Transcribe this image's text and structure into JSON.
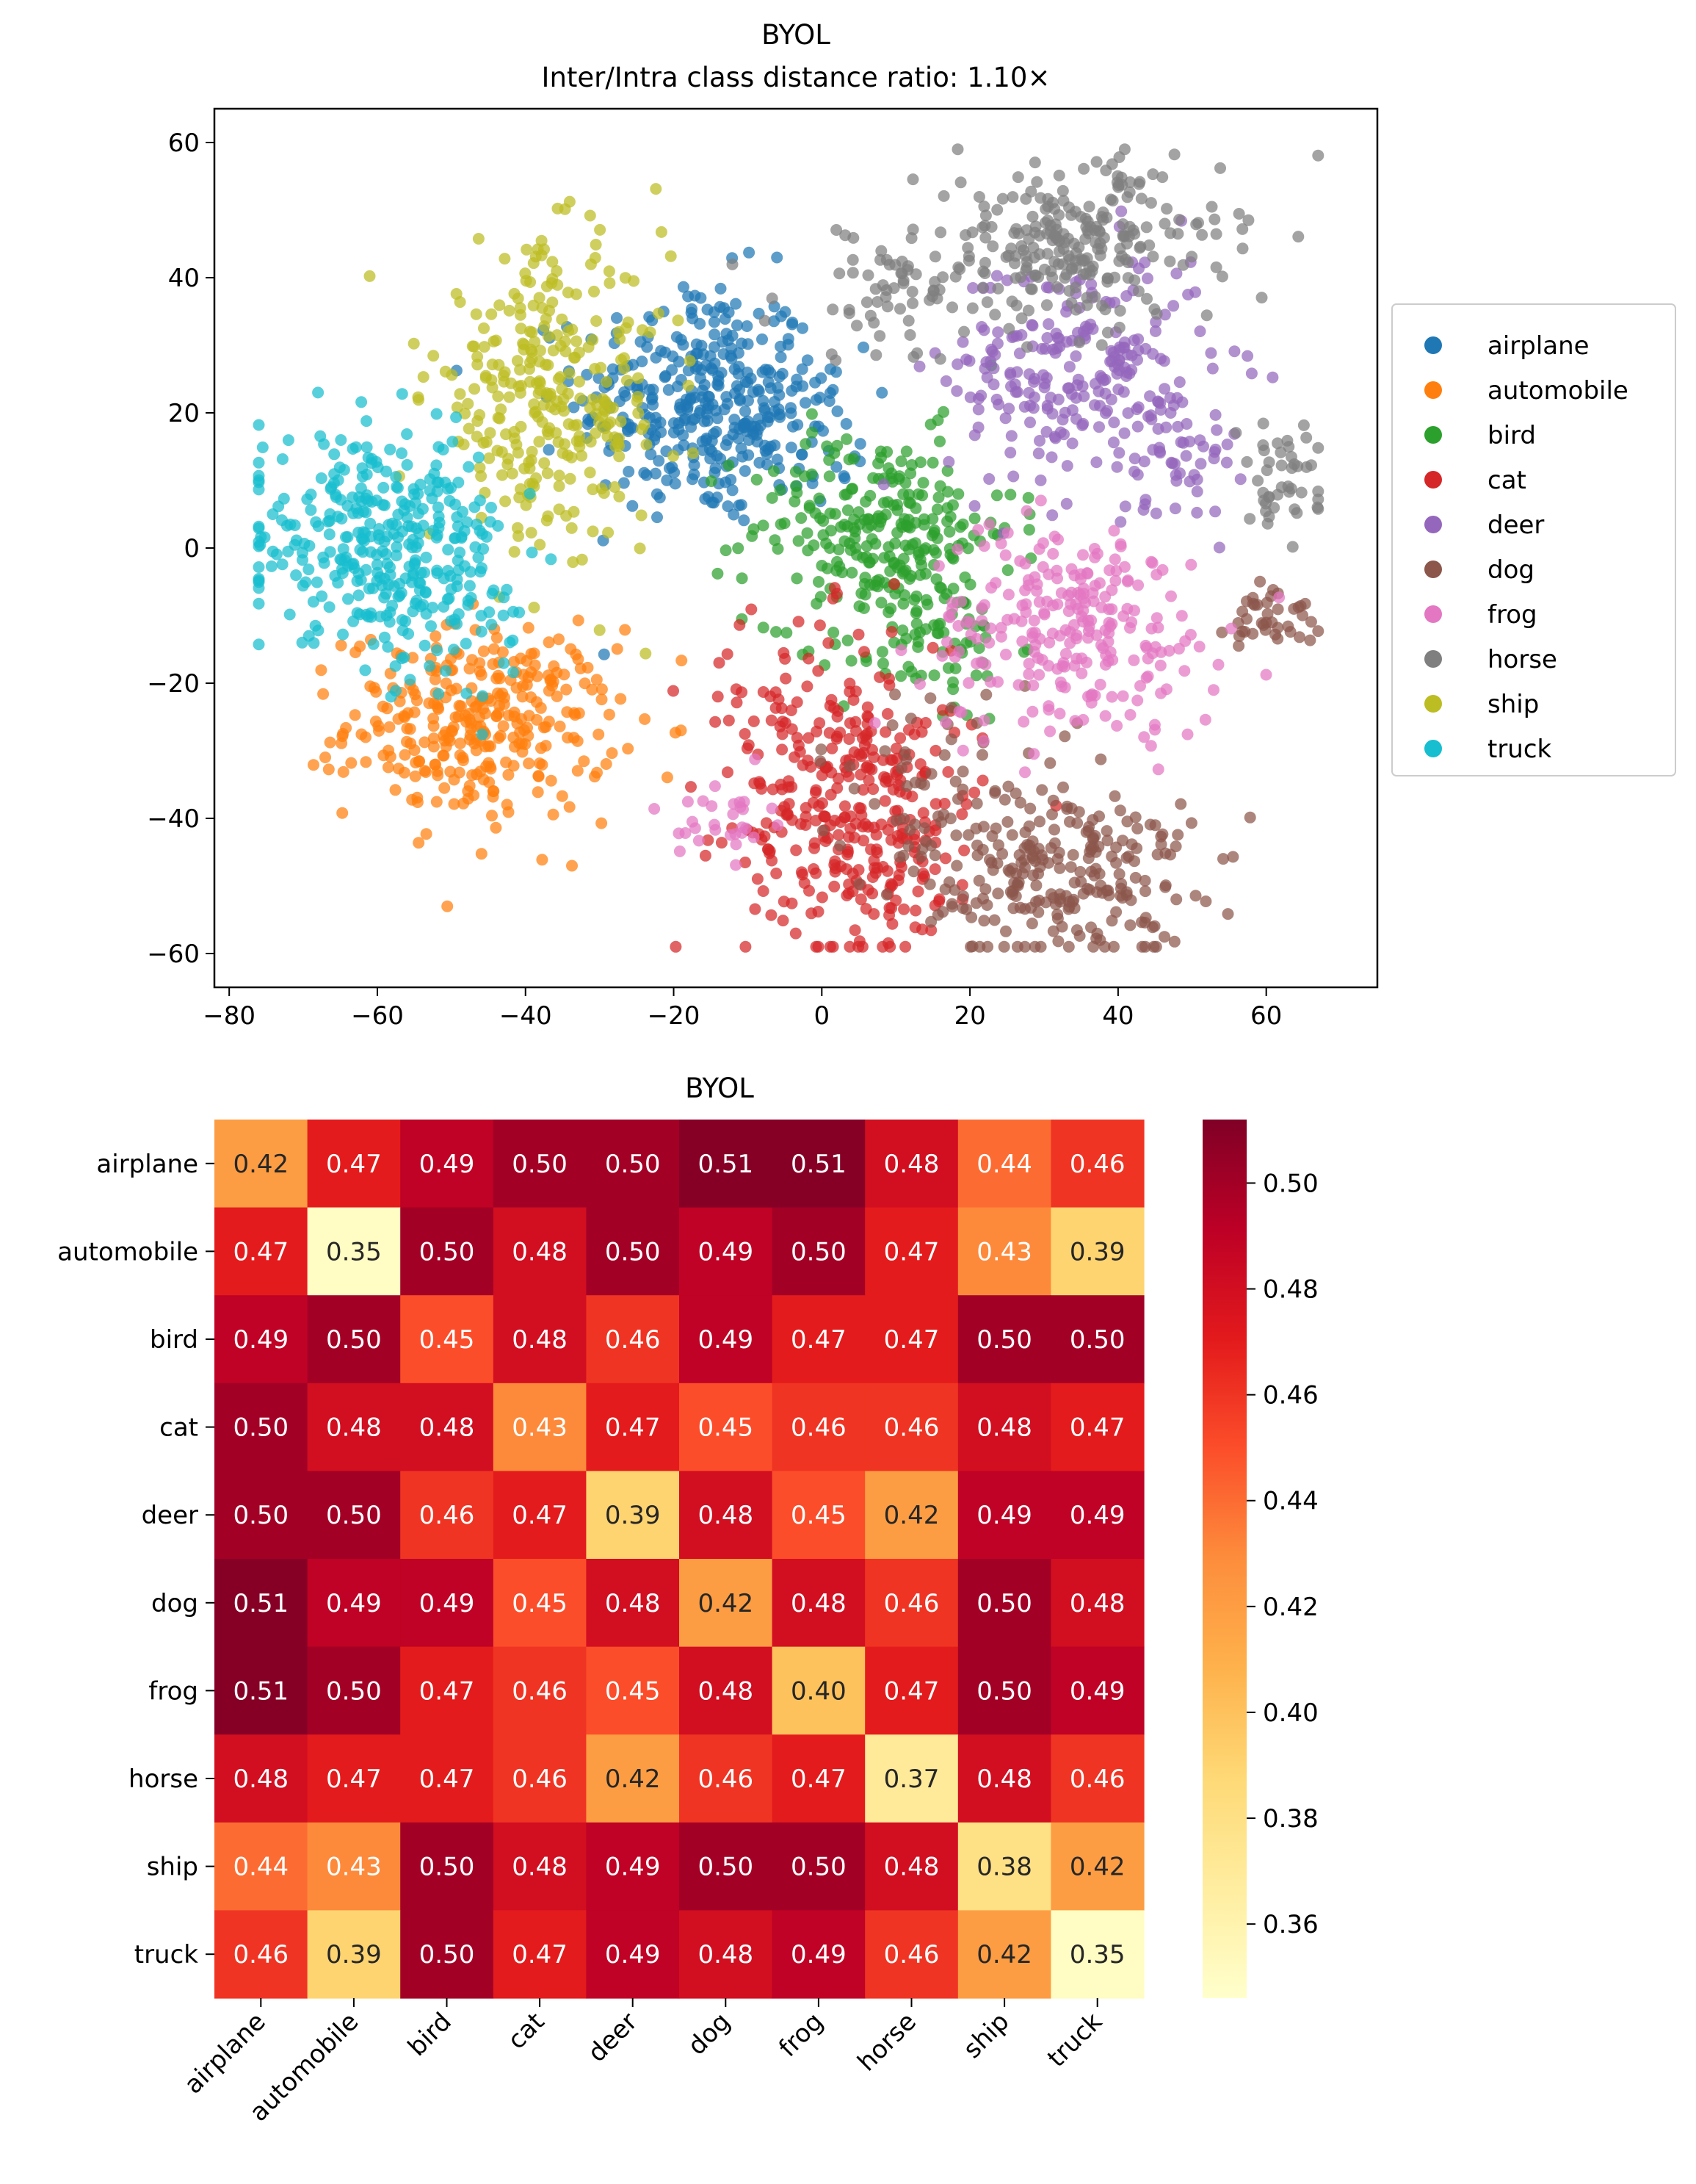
{
  "chart_data": [
    {
      "type": "scatter",
      "title": "BYOL",
      "subtitle": "Inter/Intra class distance ratio: 1.10×",
      "xlabel": "",
      "ylabel": "",
      "xlim": [
        -82,
        75
      ],
      "ylim": [
        -65,
        65
      ],
      "xticks": [
        -80,
        -60,
        -40,
        -20,
        0,
        20,
        40,
        60
      ],
      "yticks": [
        -60,
        -40,
        -20,
        0,
        20,
        40,
        60
      ],
      "xtick_labels": [
        "−80",
        "−60",
        "−40",
        "−20",
        "0",
        "20",
        "40",
        "60"
      ],
      "ytick_labels": [
        "−60",
        "−40",
        "−20",
        "0",
        "20",
        "40",
        "60"
      ],
      "legend_position": "right",
      "series": [
        {
          "name": "airplane",
          "color": "#1f77b4",
          "clusters": [
            {
              "center": [
                -17,
                22
              ],
              "spread": [
                8,
                9
              ],
              "n": 300
            },
            {
              "center": [
                -6,
                18
              ],
              "spread": [
                6,
                6
              ],
              "n": 80
            }
          ]
        },
        {
          "name": "automobile",
          "color": "#ff7f0e",
          "clusters": [
            {
              "center": [
                -46,
                -26
              ],
              "spread": [
                9,
                7
              ],
              "n": 320
            }
          ]
        },
        {
          "name": "bird",
          "color": "#2ca02c",
          "clusters": [
            {
              "center": [
                8,
                3
              ],
              "spread": [
                9,
                7
              ],
              "n": 250
            },
            {
              "center": [
                14,
                -14
              ],
              "spread": [
                6,
                6
              ],
              "n": 80
            }
          ]
        },
        {
          "name": "cat",
          "color": "#d62728",
          "clusters": [
            {
              "center": [
                6,
                -42
              ],
              "spread": [
                8,
                9
              ],
              "n": 250
            },
            {
              "center": [
                0,
                -26
              ],
              "spread": [
                9,
                8
              ],
              "n": 120
            }
          ]
        },
        {
          "name": "deer",
          "color": "#9467bd",
          "clusters": [
            {
              "center": [
                35,
                26
              ],
              "spread": [
                9,
                9
              ],
              "n": 250
            },
            {
              "center": [
                48,
                13
              ],
              "spread": [
                4,
                4
              ],
              "n": 40
            }
          ]
        },
        {
          "name": "dog",
          "color": "#8c564b",
          "clusters": [
            {
              "center": [
                32,
                -48
              ],
              "spread": [
                9,
                7
              ],
              "n": 250
            },
            {
              "center": [
                61,
                -10
              ],
              "spread": [
                3,
                3
              ],
              "n": 40
            },
            {
              "center": [
                15,
                -34
              ],
              "spread": [
                8,
                7
              ],
              "n": 50
            }
          ]
        },
        {
          "name": "frog",
          "color": "#e377c2",
          "clusters": [
            {
              "center": [
                34,
                -12
              ],
              "spread": [
                10,
                8
              ],
              "n": 250
            },
            {
              "center": [
                -13,
                -40
              ],
              "spread": [
                3,
                3
              ],
              "n": 30
            }
          ]
        },
        {
          "name": "horse",
          "color": "#7f7f7f",
          "clusters": [
            {
              "center": [
                34,
                45
              ],
              "spread": [
                10,
                6
              ],
              "n": 250
            },
            {
              "center": [
                62,
                10
              ],
              "spread": [
                3,
                4
              ],
              "n": 45
            },
            {
              "center": [
                10,
                38
              ],
              "spread": [
                8,
                5
              ],
              "n": 60
            }
          ]
        },
        {
          "name": "ship",
          "color": "#bcbd22",
          "clusters": [
            {
              "center": [
                -37,
                22
              ],
              "spread": [
                8,
                11
              ],
              "n": 300
            }
          ]
        },
        {
          "name": "truck",
          "color": "#17becf",
          "clusters": [
            {
              "center": [
                -60,
                2
              ],
              "spread": [
                9,
                7
              ],
              "n": 300
            },
            {
              "center": [
                -52,
                -10
              ],
              "spread": [
                6,
                5
              ],
              "n": 70
            }
          ]
        }
      ]
    },
    {
      "type": "heatmap",
      "title": "BYOL",
      "categories": [
        "airplane",
        "automobile",
        "bird",
        "cat",
        "deer",
        "dog",
        "frog",
        "horse",
        "ship",
        "truck"
      ],
      "values": [
        [
          0.42,
          0.47,
          0.49,
          0.5,
          0.5,
          0.51,
          0.51,
          0.48,
          0.44,
          0.46
        ],
        [
          0.47,
          0.35,
          0.5,
          0.48,
          0.5,
          0.49,
          0.5,
          0.47,
          0.43,
          0.39
        ],
        [
          0.49,
          0.5,
          0.45,
          0.48,
          0.46,
          0.49,
          0.47,
          0.47,
          0.5,
          0.5
        ],
        [
          0.5,
          0.48,
          0.48,
          0.43,
          0.47,
          0.45,
          0.46,
          0.46,
          0.48,
          0.47
        ],
        [
          0.5,
          0.5,
          0.46,
          0.47,
          0.39,
          0.48,
          0.45,
          0.42,
          0.49,
          0.49
        ],
        [
          0.51,
          0.49,
          0.49,
          0.45,
          0.48,
          0.42,
          0.48,
          0.46,
          0.5,
          0.48
        ],
        [
          0.51,
          0.5,
          0.47,
          0.46,
          0.45,
          0.48,
          0.4,
          0.47,
          0.5,
          0.49
        ],
        [
          0.48,
          0.47,
          0.47,
          0.46,
          0.42,
          0.46,
          0.47,
          0.37,
          0.48,
          0.46
        ],
        [
          0.44,
          0.43,
          0.5,
          0.48,
          0.49,
          0.5,
          0.5,
          0.48,
          0.38,
          0.42
        ],
        [
          0.46,
          0.39,
          0.5,
          0.47,
          0.49,
          0.48,
          0.49,
          0.46,
          0.42,
          0.35
        ]
      ],
      "colormap": "YlOrRd",
      "vmin": 0.346,
      "vmax": 0.512,
      "colorbar_ticks": [
        0.36,
        0.38,
        0.4,
        0.42,
        0.44,
        0.46,
        0.48,
        0.5
      ],
      "colorbar_tick_labels": [
        "0.36",
        "0.38",
        "0.40",
        "0.42",
        "0.44",
        "0.46",
        "0.48",
        "0.50"
      ]
    }
  ]
}
